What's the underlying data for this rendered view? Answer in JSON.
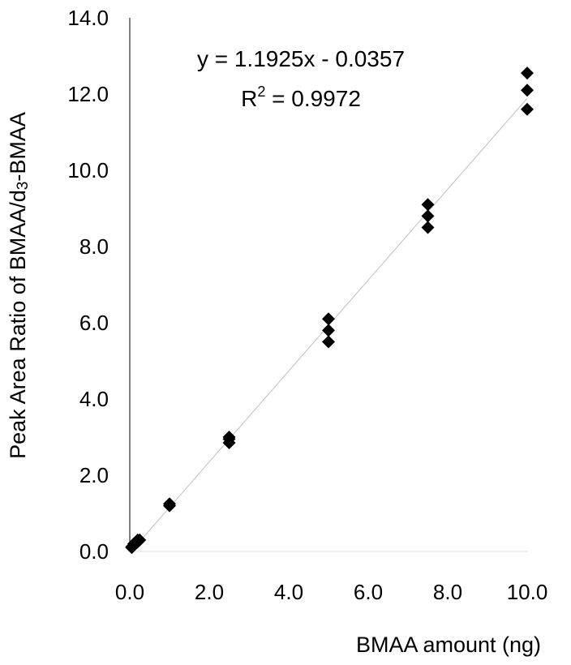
{
  "chart_data": {
    "type": "scatter",
    "title": "",
    "xlabel": "BMAA amount (ng)",
    "ylabel": "Peak Area Ratio of BMAA/d3-BMAA",
    "ylabel_parts": {
      "before": "Peak Area Ratio of BMAA/d",
      "sub": "3",
      "after": "-BMAA"
    },
    "xlim": [
      0,
      10
    ],
    "ylim": [
      0,
      14
    ],
    "x_ticks": [
      0,
      2,
      4,
      6,
      8,
      10
    ],
    "y_ticks": [
      0,
      2,
      4,
      6,
      8,
      10,
      12,
      14
    ],
    "x_tick_labels": [
      "0.0",
      "2.0",
      "4.0",
      "6.0",
      "8.0",
      "10.0"
    ],
    "y_tick_labels": [
      "0.0",
      "2.0",
      "4.0",
      "6.0",
      "8.0",
      "10.0",
      "12.0",
      "14.0"
    ],
    "grid": false,
    "legend": "none",
    "marker": "diamond",
    "marker_color": "#000000",
    "trendline_color": "#bfbfbf",
    "series": [
      {
        "x": [
          0.05,
          0.05,
          0.1,
          0.2,
          0.2,
          0.25,
          1.0,
          1.0,
          2.5,
          2.5,
          2.5,
          5.0,
          5.0,
          5.0,
          7.5,
          7.5,
          7.5,
          10.0,
          10.0,
          10.0
        ],
        "y": [
          0.1,
          0.12,
          0.2,
          0.25,
          0.3,
          0.3,
          1.2,
          1.25,
          2.85,
          2.95,
          3.0,
          5.5,
          5.8,
          6.1,
          8.5,
          8.8,
          9.1,
          11.6,
          12.1,
          12.55
        ]
      }
    ],
    "trendline": {
      "slope": 1.1925,
      "intercept": -0.0357,
      "equation_text": "y = 1.1925x - 0.0357",
      "r2_label": "R",
      "r2_sup": "2",
      "r2_value": " = 0.9972"
    }
  }
}
